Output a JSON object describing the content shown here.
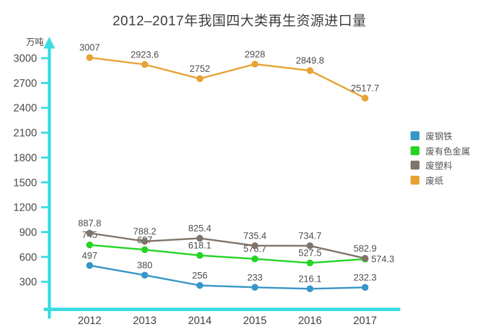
{
  "chart_data": {
    "type": "line",
    "title": "2012–2017年我国四大类再生资源进口量",
    "unit_label": "万吨",
    "categories": [
      "2012",
      "2013",
      "2014",
      "2015",
      "2016",
      "2017"
    ],
    "y_ticks": [
      300,
      600,
      900,
      1200,
      1500,
      1800,
      2100,
      2400,
      2700,
      3000
    ],
    "ylim": [
      0,
      3100
    ],
    "grid": false,
    "legend_position": "right",
    "axis_color": "#3bdce2",
    "tick_label_color": "#4a4a4a",
    "data_label_color": "#4c4c4c",
    "series": [
      {
        "name": "废钢铁",
        "color": "#3796c8",
        "values": [
          497,
          380,
          256,
          233,
          216.1,
          232.3
        ]
      },
      {
        "name": "废有色金属",
        "color": "#25d425",
        "values": [
          745,
          687,
          618.1,
          576.7,
          527.5,
          574.3
        ]
      },
      {
        "name": "废塑料",
        "color": "#80746a",
        "values": [
          887.8,
          788.2,
          825.4,
          735.4,
          734.7,
          582.9
        ]
      },
      {
        "name": "废纸",
        "color": "#e8a133",
        "values": [
          3007,
          2923.6,
          2752,
          2928,
          2849.8,
          2517.7
        ]
      }
    ]
  }
}
